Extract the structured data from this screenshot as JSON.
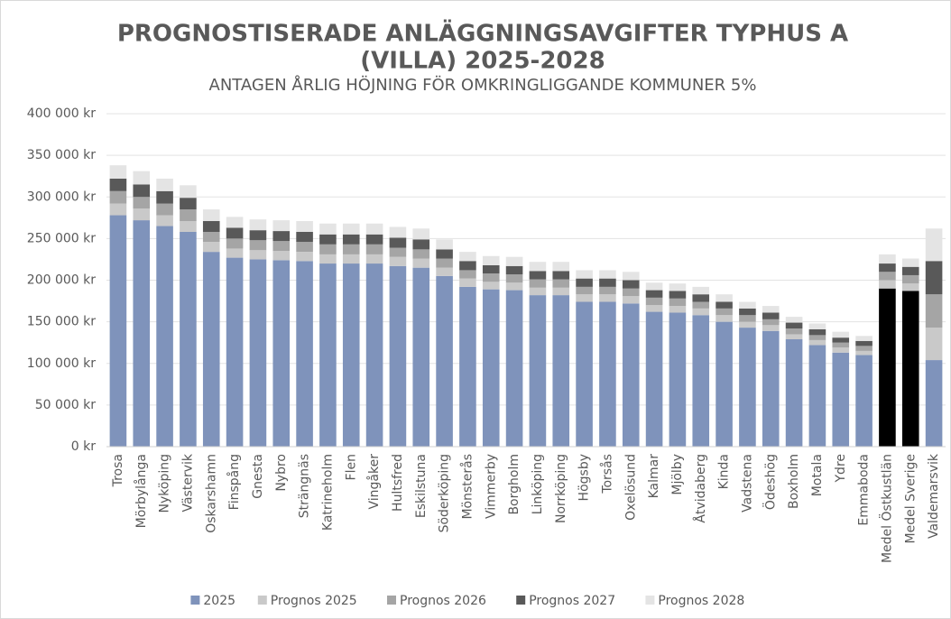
{
  "chart_data": {
    "type": "stacked_bar",
    "title": [
      "PROGNOSTISERADE ANLÄGGNINGSAVGIFTER TYPHUS A",
      "(VILLA) 2025-2028"
    ],
    "subtitle": "ANTAGEN ÅRLIG HÖJNING FÖR OMKRINGLIGGANDE KOMMUNER 5%",
    "categories": [
      "Trosa",
      "Mörbylånga",
      "Nyköping",
      "Västervik",
      "Oskarshamn",
      "Finspång",
      "Gnesta",
      "Nybro",
      "Strängnäs",
      "Katrineholm",
      "Flen",
      "Vingåker",
      "Hultsfred",
      "Eskilstuna",
      "Söderköping",
      "Mönsterås",
      "Vimmerby",
      "Borgholm",
      "Linköping",
      "Norrköping",
      "Högsby",
      "Torsås",
      "Oxelösund",
      "Kalmar",
      "Mjölby",
      "Åtvidaberg",
      "Kinda",
      "Vadstena",
      "Ödeshög",
      "Boxholm",
      "Motala",
      "Ydre",
      "Emmaboda",
      "Medel Östkustlän",
      "Medel Sverige",
      "Valdemarsvik"
    ],
    "series": [
      {
        "name": "2025",
        "color": "#7f93bb",
        "colors": [
          "#7f93bb",
          "#7f93bb",
          "#7f93bb",
          "#7f93bb",
          "#7f93bb",
          "#7f93bb",
          "#7f93bb",
          "#7f93bb",
          "#7f93bb",
          "#7f93bb",
          "#7f93bb",
          "#7f93bb",
          "#7f93bb",
          "#7f93bb",
          "#7f93bb",
          "#7f93bb",
          "#7f93bb",
          "#7f93bb",
          "#7f93bb",
          "#7f93bb",
          "#7f93bb",
          "#7f93bb",
          "#7f93bb",
          "#7f93bb",
          "#7f93bb",
          "#7f93bb",
          "#7f93bb",
          "#7f93bb",
          "#7f93bb",
          "#7f93bb",
          "#7f93bb",
          "#7f93bb",
          "#7f93bb",
          "#000000",
          "#000000",
          "#7f93bb"
        ],
        "values": [
          278000,
          272000,
          265000,
          258000,
          234000,
          227000,
          225000,
          224000,
          223000,
          220000,
          220000,
          220000,
          217000,
          215000,
          205000,
          192000,
          189000,
          188000,
          182000,
          182000,
          174000,
          174000,
          172000,
          162000,
          161000,
          158000,
          150000,
          143000,
          139000,
          129000,
          122000,
          113000,
          110000,
          190000,
          187000,
          104000
        ]
      },
      {
        "name": "Prognos 2025",
        "color": "#c9c9c9",
        "values": [
          14000,
          14000,
          13000,
          13000,
          12000,
          11000,
          11000,
          11000,
          11000,
          11000,
          11000,
          11000,
          11000,
          11000,
          10000,
          10000,
          9000,
          9000,
          9000,
          9000,
          9000,
          9000,
          9000,
          8000,
          8000,
          8000,
          8000,
          7000,
          7000,
          6000,
          6000,
          6000,
          5000,
          10000,
          9000,
          39000
        ]
      },
      {
        "name": "Prognos 2026",
        "color": "#a5a5a5",
        "values": [
          15000,
          14000,
          14000,
          14000,
          12000,
          12000,
          12000,
          12000,
          12000,
          12000,
          12000,
          12000,
          11000,
          11000,
          11000,
          10000,
          10000,
          10000,
          10000,
          10000,
          9000,
          9000,
          9000,
          9000,
          9000,
          8000,
          8000,
          8000,
          7000,
          7000,
          6000,
          6000,
          6000,
          10000,
          10000,
          40000
        ]
      },
      {
        "name": "Prognos 2027",
        "color": "#595959",
        "values": [
          15000,
          15000,
          15000,
          14000,
          13000,
          13000,
          12000,
          12000,
          12000,
          12000,
          12000,
          12000,
          12000,
          12000,
          11000,
          11000,
          10000,
          10000,
          10000,
          10000,
          10000,
          10000,
          10000,
          9000,
          9000,
          9000,
          8000,
          8000,
          8000,
          7000,
          7000,
          6000,
          6000,
          10000,
          10000,
          40000
        ]
      },
      {
        "name": "Prognos 2028",
        "color": "#e4e4e4",
        "values": [
          16000,
          16000,
          15000,
          15000,
          14000,
          13000,
          13000,
          13000,
          13000,
          13000,
          13000,
          13000,
          13000,
          13000,
          12000,
          11000,
          11000,
          11000,
          11000,
          11000,
          10000,
          10000,
          10000,
          9000,
          9000,
          9000,
          9000,
          8000,
          8000,
          7000,
          7000,
          7000,
          6000,
          11000,
          10000,
          39000
        ]
      }
    ],
    "ylim": [
      0,
      400000
    ],
    "yticks": [
      {
        "value": 0,
        "label": "0 kr"
      },
      {
        "value": 50000,
        "label": "50 000 kr"
      },
      {
        "value": 100000,
        "label": "100 000 kr"
      },
      {
        "value": 150000,
        "label": "150 000 kr"
      },
      {
        "value": 200000,
        "label": "200 000 kr"
      },
      {
        "value": 250000,
        "label": "250 000 kr"
      },
      {
        "value": 300000,
        "label": "300 000 kr"
      },
      {
        "value": 350000,
        "label": "350 000 kr"
      },
      {
        "value": 400000,
        "label": "400 000 kr"
      }
    ],
    "grid": true,
    "legend": "bottom"
  }
}
